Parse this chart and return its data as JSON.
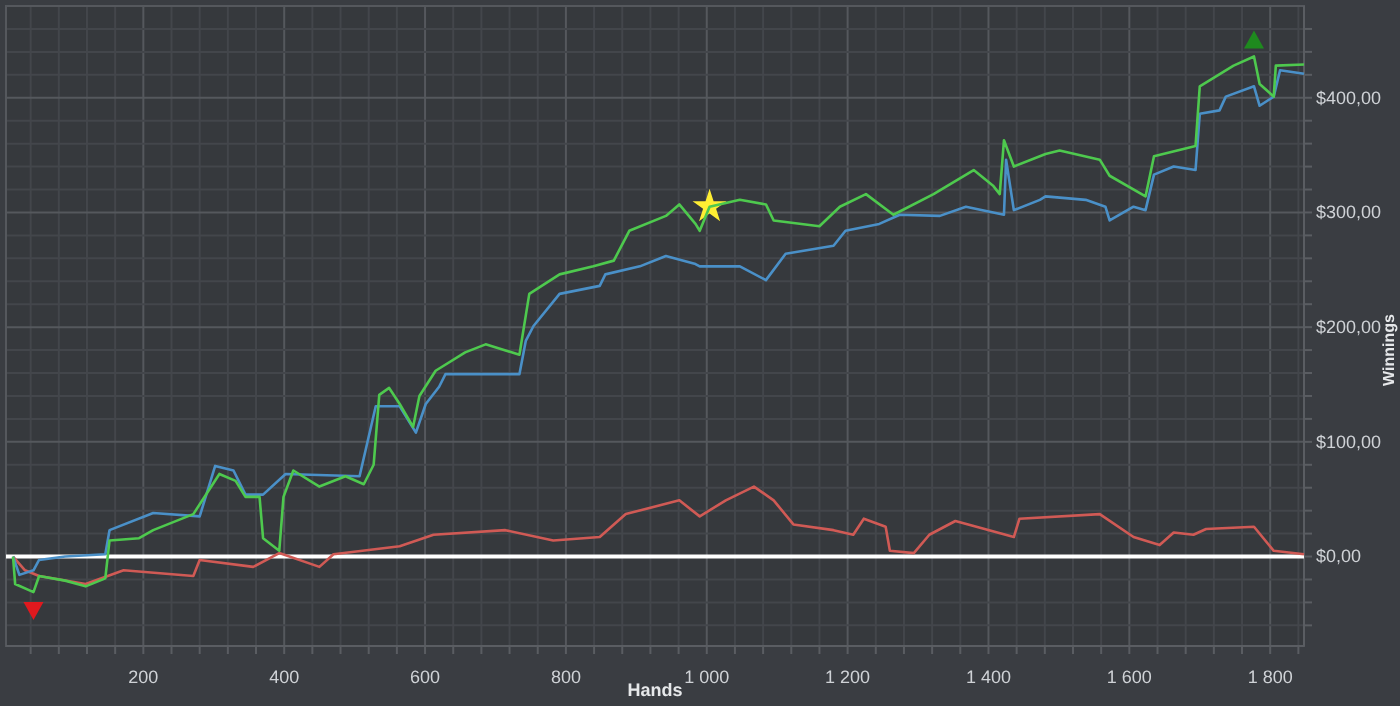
{
  "chart_data": {
    "type": "line",
    "xlabel": "Hands",
    "ylabel": "Winnings",
    "xlim": [
      5,
      1848
    ],
    "ylim": [
      -78,
      480
    ],
    "xticks": [
      {
        "value": 40,
        "label": null
      },
      {
        "value": 80,
        "label": null
      },
      {
        "value": 120,
        "label": null
      },
      {
        "value": 160,
        "label": null
      },
      200,
      {
        "value": 240,
        "label": null
      },
      {
        "value": 280,
        "label": null
      },
      {
        "value": 320,
        "label": null
      },
      {
        "value": 360,
        "label": null
      },
      400,
      {
        "value": 440,
        "label": null
      },
      {
        "value": 480,
        "label": null
      },
      {
        "value": 520,
        "label": null
      },
      {
        "value": 560,
        "label": null
      },
      600,
      {
        "value": 640,
        "label": null
      },
      {
        "value": 680,
        "label": null
      },
      {
        "value": 720,
        "label": null
      },
      {
        "value": 760,
        "label": null
      },
      800,
      {
        "value": 840,
        "label": null
      },
      {
        "value": 880,
        "label": null
      },
      {
        "value": 920,
        "label": null
      },
      {
        "value": 960,
        "label": null
      },
      {
        "value": 1000,
        "label": "1 000"
      },
      {
        "value": 1040,
        "label": null
      },
      {
        "value": 1080,
        "label": null
      },
      {
        "value": 1120,
        "label": null
      },
      {
        "value": 1160,
        "label": null
      },
      {
        "value": 1200,
        "label": "1 200"
      },
      {
        "value": 1240,
        "label": null
      },
      {
        "value": 1280,
        "label": null
      },
      {
        "value": 1320,
        "label": null
      },
      {
        "value": 1360,
        "label": null
      },
      {
        "value": 1400,
        "label": "1 400"
      },
      {
        "value": 1440,
        "label": null
      },
      {
        "value": 1480,
        "label": null
      },
      {
        "value": 1520,
        "label": null
      },
      {
        "value": 1560,
        "label": null
      },
      {
        "value": 1600,
        "label": "1 600"
      },
      {
        "value": 1640,
        "label": null
      },
      {
        "value": 1680,
        "label": null
      },
      {
        "value": 1720,
        "label": null
      },
      {
        "value": 1760,
        "label": null
      },
      {
        "value": 1800,
        "label": "1 800"
      },
      {
        "value": 1840,
        "label": null
      }
    ],
    "yticks": [
      {
        "value": -60,
        "label": null
      },
      {
        "value": -40,
        "label": null
      },
      {
        "value": -20,
        "label": null
      },
      {
        "value": 0,
        "label": "$0,00"
      },
      {
        "value": 20,
        "label": null
      },
      {
        "value": 40,
        "label": null
      },
      {
        "value": 60,
        "label": null
      },
      {
        "value": 80,
        "label": null
      },
      {
        "value": 100,
        "label": "$100,00"
      },
      {
        "value": 120,
        "label": null
      },
      {
        "value": 140,
        "label": null
      },
      {
        "value": 160,
        "label": null
      },
      {
        "value": 180,
        "label": null
      },
      {
        "value": 200,
        "label": "$200,00"
      },
      {
        "value": 220,
        "label": null
      },
      {
        "value": 240,
        "label": null
      },
      {
        "value": 260,
        "label": null
      },
      {
        "value": 280,
        "label": null
      },
      {
        "value": 300,
        "label": "$300,00"
      },
      {
        "value": 320,
        "label": null
      },
      {
        "value": 340,
        "label": null
      },
      {
        "value": 360,
        "label": null
      },
      {
        "value": 380,
        "label": null
      },
      {
        "value": 400,
        "label": "$400,00"
      },
      {
        "value": 420,
        "label": null
      },
      {
        "value": 440,
        "label": null
      },
      {
        "value": 460,
        "label": null
      }
    ],
    "grid": true,
    "marker": "none",
    "ref_lines": [
      {
        "axis": "y",
        "value": 0,
        "color": "#ffffff"
      }
    ],
    "series": [
      {
        "color": "#4ec94e",
        "x": [
          15,
          18,
          44,
          52,
          89,
          118,
          146,
          152,
          194,
          214,
          271,
          308,
          331,
          345,
          365,
          370,
          393,
          399,
          413,
          450,
          487,
          513,
          527,
          535,
          549,
          564,
          583,
          592,
          615,
          657,
          686,
          734,
          748,
          791,
          839,
          868,
          890,
          942,
          961,
          984,
          990,
          1004,
          1047,
          1084,
          1095,
          1160,
          1189,
          1226,
          1265,
          1322,
          1379,
          1407,
          1416,
          1422,
          1436,
          1481,
          1501,
          1558,
          1572,
          1623,
          1635,
          1694,
          1700,
          1748,
          1777,
          1785,
          1805,
          1808,
          1848
        ],
        "values": [
          0,
          -24,
          -31,
          -17,
          -21,
          -26,
          -19,
          14,
          16,
          23,
          37,
          72,
          66,
          52,
          52,
          16,
          5,
          52,
          75,
          61,
          70,
          63,
          80,
          141,
          147,
          133,
          113,
          140,
          162,
          178,
          185,
          176,
          229,
          246,
          253,
          258,
          284,
          297,
          307,
          290,
          284,
          305,
          311,
          307,
          293,
          288,
          305,
          316,
          298,
          316,
          337,
          323,
          316,
          363,
          340,
          351,
          354,
          346,
          332,
          314,
          349,
          358,
          410,
          428,
          436,
          412,
          401,
          428,
          429
        ]
      },
      {
        "color": "#4a90c8",
        "x": [
          15,
          24,
          44,
          52,
          89,
          146,
          152,
          214,
          280,
          302,
          328,
          345,
          370,
          402,
          507,
          530,
          564,
          587,
          601,
          620,
          629,
          734,
          743,
          754,
          791,
          848,
          856,
          905,
          942,
          984,
          990,
          1047,
          1084,
          1112,
          1180,
          1197,
          1245,
          1274,
          1331,
          1368,
          1422,
          1425,
          1436,
          1473,
          1481,
          1538,
          1566,
          1572,
          1606,
          1623,
          1635,
          1663,
          1694,
          1700,
          1728,
          1737,
          1777,
          1785,
          1805,
          1814,
          1848
        ],
        "values": [
          0,
          -16,
          -12,
          -3,
          0,
          2,
          23,
          38,
          35,
          79,
          75,
          54,
          54,
          72,
          70,
          131,
          131,
          108,
          133,
          148,
          159,
          159,
          188,
          201,
          229,
          236,
          246,
          253,
          262,
          255,
          253,
          253,
          241,
          264,
          271,
          284,
          290,
          298,
          297,
          305,
          298,
          346,
          302,
          311,
          314,
          311,
          305,
          293,
          305,
          302,
          333,
          340,
          337,
          386,
          389,
          401,
          410,
          393,
          401,
          424,
          421
        ]
      },
      {
        "color": "#d05a55",
        "x": [
          15,
          32,
          52,
          118,
          172,
          271,
          280,
          356,
          393,
          450,
          470,
          564,
          612,
          714,
          782,
          848,
          885,
          961,
          990,
          1027,
          1067,
          1095,
          1123,
          1180,
          1208,
          1223,
          1254,
          1260,
          1294,
          1316,
          1353,
          1436,
          1444,
          1558,
          1606,
          1643,
          1663,
          1691,
          1709,
          1777,
          1805,
          1848
        ],
        "values": [
          0,
          -12,
          -17,
          -24,
          -12,
          -17,
          -3,
          -9,
          3,
          -9,
          2,
          9,
          19,
          23,
          14,
          17,
          37,
          49,
          35,
          49,
          61,
          49,
          28,
          23,
          19,
          33,
          26,
          5,
          3,
          19,
          31,
          17,
          33,
          37,
          17,
          10,
          21,
          19,
          24,
          26,
          5,
          2
        ]
      },
      {
        "type": "scatter",
        "marker": "star",
        "color": "#ffee33",
        "x": [
          1004
        ],
        "values": [
          305
        ]
      }
    ]
  }
}
